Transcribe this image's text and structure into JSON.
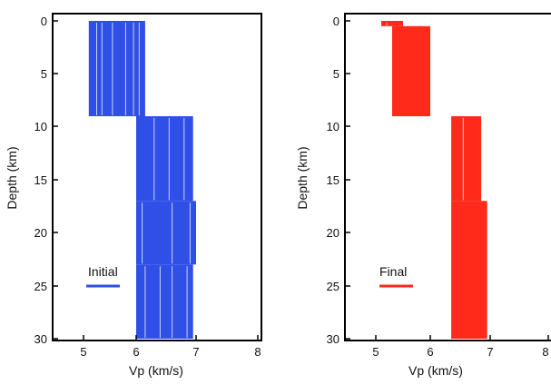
{
  "chart_data": [
    {
      "type": "line",
      "ylabel": "Depth (km)",
      "xlabel": "Vp (km/s)",
      "xlim": [
        4.0,
        8.0
      ],
      "ylim": [
        30,
        0
      ],
      "x_ticks": [
        "5",
        "6",
        "7",
        "8"
      ],
      "y_ticks": [
        "0",
        "5",
        "10",
        "15",
        "20",
        "25",
        "30"
      ],
      "legend": {
        "label": "Initial",
        "position": "bottom-left"
      },
      "color": "#2f4fe6",
      "layers": [
        {
          "top": 0,
          "bottom": 9,
          "vp_min": 5.1,
          "vp_max": 6.15
        },
        {
          "top": 9,
          "bottom": 17,
          "vp_min": 6.0,
          "vp_max": 6.95
        },
        {
          "top": 17,
          "bottom": 23,
          "vp_min": 6.0,
          "vp_max": 7.0
        },
        {
          "top": 23,
          "bottom": 30,
          "vp_min": 6.0,
          "vp_max": 6.95
        }
      ],
      "line_gaps": [
        {
          "layer": 0,
          "vp": [
            5.25,
            5.35,
            5.55,
            5.8,
            5.95,
            6.05
          ]
        },
        {
          "layer": 1,
          "vp": [
            6.3,
            6.55,
            6.8
          ]
        },
        {
          "layer": 2,
          "vp": [
            6.1,
            6.6,
            6.9
          ]
        },
        {
          "layer": 3,
          "vp": [
            6.15,
            6.4,
            6.6,
            6.85
          ]
        }
      ]
    },
    {
      "type": "line",
      "ylabel": "Depth (km)",
      "xlabel": "Vp (km/s)",
      "xlim": [
        4.0,
        8.0
      ],
      "ylim": [
        30,
        0
      ],
      "x_ticks": [
        "5",
        "6",
        "7",
        "8"
      ],
      "y_ticks": [
        "0",
        "5",
        "10",
        "15",
        "20",
        "25",
        "30"
      ],
      "legend": {
        "label": "Final",
        "position": "bottom-left"
      },
      "color": "#ff2a1a",
      "layers": [
        {
          "top": 0,
          "bottom": 0.5,
          "vp_min": 5.1,
          "vp_max": 5.5
        },
        {
          "top": 0.5,
          "bottom": 9,
          "vp_min": 5.3,
          "vp_max": 6.0
        },
        {
          "top": 9,
          "bottom": 17,
          "vp_min": 6.35,
          "vp_max": 6.85
        },
        {
          "top": 17,
          "bottom": 30,
          "vp_min": 6.35,
          "vp_max": 6.95
        }
      ],
      "line_gaps": [
        {
          "layer": 0,
          "vp": [
            5.2
          ]
        },
        {
          "layer": 1,
          "vp": []
        },
        {
          "layer": 2,
          "vp": [
            6.55
          ]
        },
        {
          "layer": 3,
          "vp": []
        }
      ]
    }
  ]
}
